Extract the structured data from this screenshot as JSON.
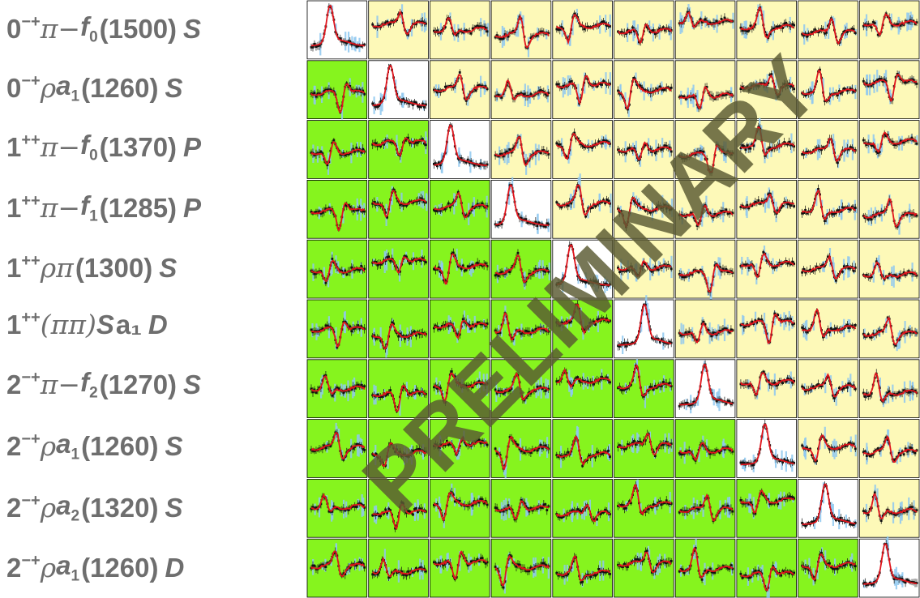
{
  "rows": [
    {
      "jpc": "0",
      "jpc_sup": "−+",
      "isobar_prefix": "π−",
      "isobar": "f",
      "isobar_sub": "0",
      "mass": "(1500)",
      "wave": "S"
    },
    {
      "jpc": "0",
      "jpc_sup": "−+",
      "isobar_prefix": "ρ",
      "isobar": "a",
      "isobar_sub": "1",
      "mass": "(1260)",
      "wave": "S"
    },
    {
      "jpc": "1",
      "jpc_sup": "++",
      "isobar_prefix": "π−",
      "isobar": "f",
      "isobar_sub": "0",
      "mass": "(1370)",
      "wave": "P"
    },
    {
      "jpc": "1",
      "jpc_sup": "++",
      "isobar_prefix": "π−",
      "isobar": "f",
      "isobar_sub": "1",
      "mass": "(1285)",
      "wave": "P"
    },
    {
      "jpc": "1",
      "jpc_sup": "++",
      "isobar_prefix": "ρπ",
      "isobar": "",
      "isobar_sub": "",
      "mass": "(1300)",
      "wave": "S"
    },
    {
      "jpc": "1",
      "jpc_sup": "++",
      "isobar_prefix": "(ππ)",
      "isobar": "S",
      "isobar_sub": "",
      "mass": "a₁",
      "wave": "D"
    },
    {
      "jpc": "2",
      "jpc_sup": "−+",
      "isobar_prefix": "π−",
      "isobar": "f",
      "isobar_sub": "2",
      "mass": "(1270)",
      "wave": "S"
    },
    {
      "jpc": "2",
      "jpc_sup": "−+",
      "isobar_prefix": "ρ",
      "isobar": "a",
      "isobar_sub": "1",
      "mass": "(1260)",
      "wave": "S"
    },
    {
      "jpc": "2",
      "jpc_sup": "−+",
      "isobar_prefix": "ρ",
      "isobar": "a",
      "isobar_sub": "2",
      "mass": "(1320)",
      "wave": "S"
    },
    {
      "jpc": "2",
      "jpc_sup": "−+",
      "isobar_prefix": "ρ",
      "isobar": "a",
      "isobar_sub": "1",
      "mass": "(1260)",
      "wave": "D"
    }
  ],
  "watermark": "PRELIMINARY",
  "colors": {
    "label_text": "#6e6e6e",
    "diagonal_bg": "#ffffff",
    "upper_bg": "#fdf9b8",
    "lower_bg": "#86f41e",
    "fit_line": "#e0141c",
    "data_points": "#111111",
    "error_band": "#8ec8f0",
    "watermark": "#5a5a32"
  },
  "chart_data": {
    "type": "matrix",
    "n": 10,
    "diagonal": "intensity",
    "upper_triangle": "real part of interference term",
    "lower_triangle": "imaginary part of interference term",
    "series": [
      "data points with error bars",
      "fit (red curve)",
      "systematic band (blue)"
    ]
  }
}
